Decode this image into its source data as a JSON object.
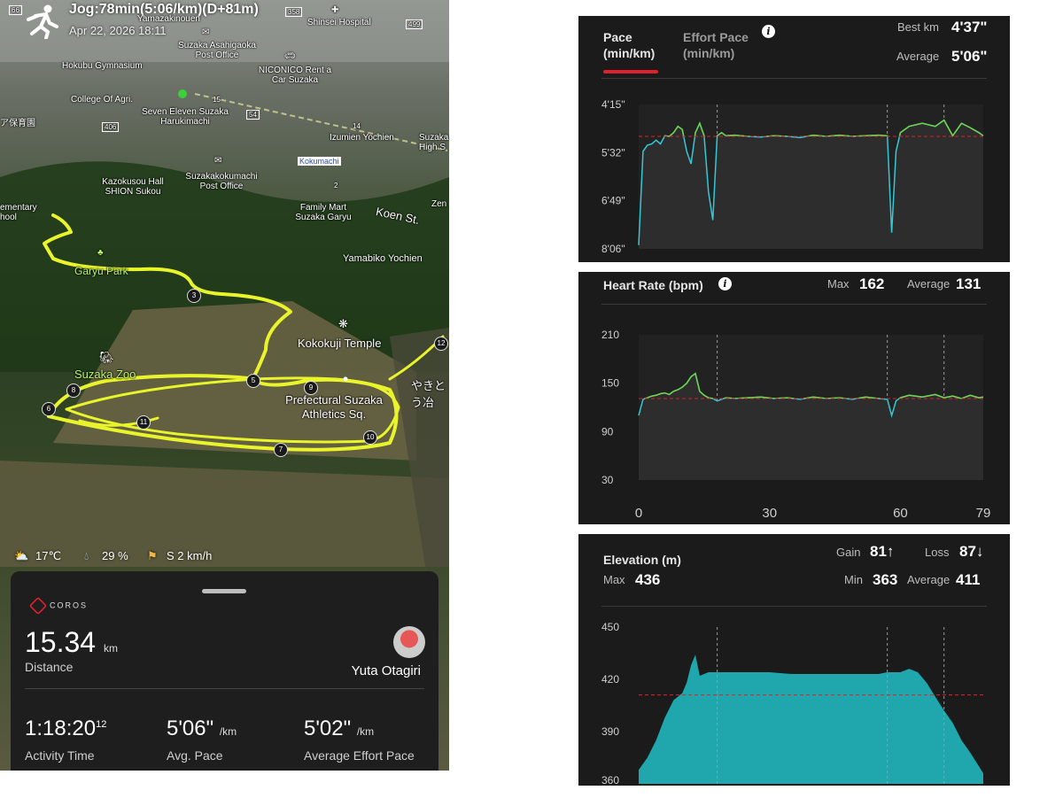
{
  "map": {
    "title": "Jog:78min(5:06/km)(D+81m)",
    "date": "Apr 22, 2026 18:11",
    "labels": {
      "yamazakinouen": "Yamazakinouen",
      "shinsei": "Shinsei Hospital",
      "asahigaoka": "Suzaka Asahigaoka Post Office",
      "hokubu": "Hokubu Gymnasium",
      "niconico": "NICONICO Rent a Car Suzaka",
      "college": "College Of Agri.",
      "seven": "Seven Eleven Suzaka Harukimachi",
      "nursery": "ア保育園",
      "izumien": "Izumien Yochien",
      "suzaka_high": "Suzaka High S",
      "kokumachi": "Kokumachi",
      "kazokusou": "Kazokusou Hall SHION Sukou",
      "kokumachi_po": "Suzakakokumachi Post Office",
      "elementary": "ementary hool",
      "familymart": "Family Mart Suzaka Garyu",
      "koen": "Koen St.",
      "zen": "Zen",
      "yamabiko": "Yamabiko Yochien",
      "garyu": "Garyu Park",
      "kokokuji": "Kokokuji Temple",
      "zoo": "Suzaka Zoo",
      "athletics": "Prefectural Suzaka Athletics Sq.",
      "yakitori": "やきと う冶"
    },
    "road_numbers": [
      "66",
      "358",
      "499",
      "15",
      "54",
      "406",
      "14",
      "2"
    ],
    "laps": [
      "3",
      "5",
      "6",
      "7",
      "8",
      "9",
      "10",
      "11",
      "12"
    ]
  },
  "weather": {
    "temp": "17℃",
    "humidity": "29 %",
    "wind": "S 2 km/h"
  },
  "card": {
    "brand": "COROS",
    "distance": "15.34",
    "distance_unit": "km",
    "distance_label": "Distance",
    "user": "Yuta Otagiri",
    "time": "1:18:20",
    "time_sub": "12",
    "time_label": "Activity Time",
    "pace": "5'06\"",
    "pace_unit": "/km",
    "pace_label": "Avg. Pace",
    "effort": "5'02\"",
    "effort_unit": "/km",
    "effort_label": "Average Effort Pace"
  },
  "pace_panel": {
    "tab1_line1": "Pace",
    "tab1_line2": "(min/km)",
    "tab2_line1": "Effort Pace",
    "tab2_line2": "(min/km)",
    "best_label": "Best km",
    "best_value": "4'37\"",
    "avg_label": "Average",
    "avg_value": "5'06\""
  },
  "hr_panel": {
    "title": "Heart Rate (bpm)",
    "max_label": "Max",
    "max_value": "162",
    "avg_label": "Average",
    "avg_value": "131"
  },
  "elev_panel": {
    "title": "Elevation (m)",
    "gain_label": "Gain",
    "gain_value": "81↑",
    "loss_label": "Loss",
    "loss_value": "87↓",
    "max_label": "Max",
    "max_value": "436",
    "min_label": "Min",
    "min_value": "363",
    "avg_label": "Average",
    "avg_value": "411"
  },
  "chart_data": [
    {
      "type": "line",
      "name": "pace",
      "yticks": [
        "4'15\"",
        "5'32\"",
        "6'49\"",
        "8'06\""
      ],
      "ylim_seconds": [
        255,
        486
      ],
      "avg_seconds": 306,
      "x": [
        0,
        1,
        2,
        3,
        4,
        5,
        6,
        7,
        8,
        9,
        10,
        11,
        12,
        13,
        14,
        15,
        16,
        17,
        18,
        19,
        20,
        22,
        25,
        28,
        31,
        34,
        37,
        40,
        43,
        46,
        49,
        52,
        55,
        57,
        58,
        59,
        60,
        62,
        65,
        68,
        70,
        72,
        74,
        76,
        78,
        79
      ],
      "values": [
        480,
        330,
        320,
        318,
        312,
        318,
        305,
        306,
        300,
        290,
        295,
        330,
        350,
        300,
        285,
        305,
        395,
        440,
        305,
        300,
        305,
        304,
        306,
        307,
        305,
        306,
        308,
        304,
        306,
        304,
        306,
        305,
        304,
        305,
        460,
        330,
        300,
        290,
        285,
        290,
        280,
        305,
        285,
        292,
        300,
        305
      ]
    },
    {
      "type": "line",
      "name": "heart_rate",
      "yticks": [
        "210",
        "150",
        "90",
        "30"
      ],
      "xticks": [
        "0",
        "30",
        "60",
        "79"
      ],
      "ylim": [
        30,
        210
      ],
      "avg": 131,
      "x": [
        0,
        1,
        2,
        3,
        4,
        5,
        6,
        7,
        8,
        9,
        10,
        11,
        12,
        13,
        14,
        15,
        16,
        17,
        18,
        19,
        20,
        22,
        25,
        28,
        31,
        34,
        37,
        40,
        43,
        46,
        49,
        52,
        55,
        57,
        58,
        59,
        60,
        62,
        65,
        68,
        70,
        72,
        74,
        76,
        78,
        79
      ],
      "values": [
        110,
        130,
        132,
        134,
        135,
        137,
        138,
        136,
        140,
        142,
        145,
        150,
        158,
        162,
        140,
        135,
        132,
        131,
        128,
        130,
        132,
        131,
        132,
        133,
        131,
        132,
        130,
        133,
        131,
        132,
        130,
        133,
        131,
        130,
        110,
        128,
        132,
        135,
        133,
        136,
        132,
        134,
        131,
        135,
        132,
        133
      ]
    },
    {
      "type": "area",
      "name": "elevation",
      "yticks": [
        "450",
        "420",
        "390",
        "360"
      ],
      "ylim": [
        360,
        455
      ],
      "avg": 411,
      "x": [
        0,
        2,
        4,
        6,
        8,
        10,
        11,
        12,
        13,
        14,
        16,
        18,
        20,
        25,
        30,
        35,
        40,
        45,
        50,
        55,
        57,
        60,
        62,
        64,
        66,
        68,
        70,
        72,
        74,
        76,
        78,
        79
      ],
      "values": [
        368,
        375,
        385,
        398,
        408,
        412,
        418,
        428,
        434,
        422,
        424,
        424,
        424,
        424,
        424,
        423,
        423,
        423,
        423,
        423,
        424,
        424,
        426,
        424,
        418,
        410,
        402,
        395,
        385,
        378,
        370,
        366
      ]
    }
  ]
}
